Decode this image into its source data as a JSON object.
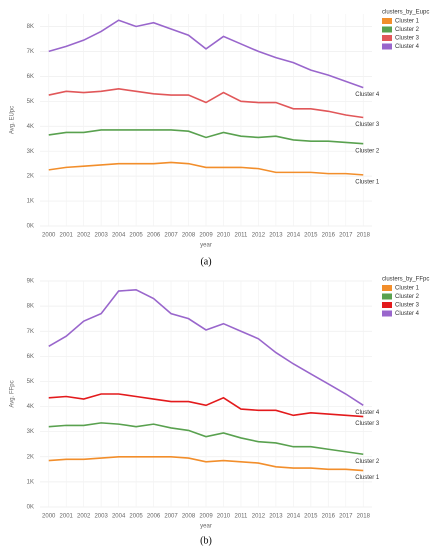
{
  "chart_data": [
    {
      "type": "line",
      "caption": "(a)",
      "x_label": "year",
      "y_label": "Avg. EUpc",
      "legend_title": "clusters_by_Eupc",
      "legend": "right",
      "grid": true,
      "categories": [
        "2000",
        "2001",
        "2002",
        "2003",
        "2004",
        "2005",
        "2006",
        "2007",
        "2008",
        "2009",
        "2010",
        "2011",
        "2012",
        "2013",
        "2014",
        "2015",
        "2016",
        "2017",
        "2018"
      ],
      "ylim": [
        0,
        8500
      ],
      "yticks": [
        {
          "value": 0,
          "label": "0K"
        },
        {
          "value": 1000,
          "label": "1K"
        },
        {
          "value": 2000,
          "label": "2K"
        },
        {
          "value": 3000,
          "label": "3K"
        },
        {
          "value": 4000,
          "label": "4K"
        },
        {
          "value": 5000,
          "label": "5K"
        },
        {
          "value": 6000,
          "label": "6K"
        },
        {
          "value": 7000,
          "label": "7K"
        },
        {
          "value": 8000,
          "label": "8K"
        }
      ],
      "series": [
        {
          "name": "Cluster 1",
          "color": "#f28e2b",
          "values": [
            2250,
            2350,
            2400,
            2450,
            2500,
            2500,
            2500,
            2550,
            2500,
            2350,
            2350,
            2350,
            2300,
            2150,
            2150,
            2150,
            2100,
            2100,
            2050
          ]
        },
        {
          "name": "Cluster 2",
          "color": "#59a14f",
          "values": [
            3650,
            3750,
            3750,
            3850,
            3850,
            3850,
            3850,
            3850,
            3800,
            3550,
            3750,
            3600,
            3550,
            3600,
            3450,
            3400,
            3400,
            3350,
            3300
          ]
        },
        {
          "name": "Cluster 3",
          "color": "#e15759",
          "values": [
            5250,
            5400,
            5350,
            5400,
            5500,
            5400,
            5300,
            5250,
            5250,
            4950,
            5350,
            5000,
            4950,
            4950,
            4700,
            4700,
            4600,
            4450,
            4350
          ]
        },
        {
          "name": "Cluster 4",
          "color": "#9966cc",
          "values": [
            7000,
            7200,
            7450,
            7800,
            8250,
            8000,
            8150,
            7900,
            7650,
            7100,
            7600,
            7300,
            7000,
            6750,
            6550,
            6250,
            6050,
            5800,
            5550
          ]
        }
      ]
    },
    {
      "type": "line",
      "caption": "(b)",
      "x_label": "year",
      "y_label": "Avg. FFpc",
      "legend_title": "clusters_by_FFpc",
      "legend": "right",
      "grid": true,
      "categories": [
        "2000",
        "2001",
        "2002",
        "2003",
        "2004",
        "2005",
        "2006",
        "2007",
        "2008",
        "2009",
        "2010",
        "2011",
        "2012",
        "2013",
        "2014",
        "2015",
        "2016",
        "2017",
        "2018"
      ],
      "ylim": [
        0,
        9000
      ],
      "yticks": [
        {
          "value": 0,
          "label": "0K"
        },
        {
          "value": 1000,
          "label": "1K"
        },
        {
          "value": 2000,
          "label": "2K"
        },
        {
          "value": 3000,
          "label": "3K"
        },
        {
          "value": 4000,
          "label": "4K"
        },
        {
          "value": 5000,
          "label": "5K"
        },
        {
          "value": 6000,
          "label": "6K"
        },
        {
          "value": 7000,
          "label": "7K"
        },
        {
          "value": 8000,
          "label": "8K"
        },
        {
          "value": 9000,
          "label": "9K"
        }
      ],
      "series": [
        {
          "name": "Cluster 1",
          "color": "#f28e2b",
          "values": [
            1850,
            1900,
            1900,
            1950,
            2000,
            2000,
            2000,
            2000,
            1950,
            1800,
            1850,
            1800,
            1750,
            1600,
            1550,
            1550,
            1500,
            1500,
            1450
          ]
        },
        {
          "name": "Cluster 2",
          "color": "#59a14f",
          "values": [
            3200,
            3250,
            3250,
            3350,
            3300,
            3200,
            3300,
            3150,
            3050,
            2800,
            2950,
            2750,
            2600,
            2550,
            2400,
            2400,
            2300,
            2200,
            2100
          ]
        },
        {
          "name": "Cluster 3",
          "color": "#e31a1c",
          "values": [
            4350,
            4400,
            4300,
            4500,
            4500,
            4400,
            4300,
            4200,
            4200,
            4050,
            4350,
            3900,
            3850,
            3850,
            3650,
            3750,
            3700,
            3650,
            3600
          ]
        },
        {
          "name": "Cluster 4",
          "color": "#9966cc",
          "values": [
            6400,
            6800,
            7400,
            7700,
            8600,
            8650,
            8300,
            7700,
            7500,
            7050,
            7300,
            7000,
            6700,
            6150,
            5700,
            5300,
            4900,
            4500,
            4050
          ]
        }
      ]
    }
  ]
}
